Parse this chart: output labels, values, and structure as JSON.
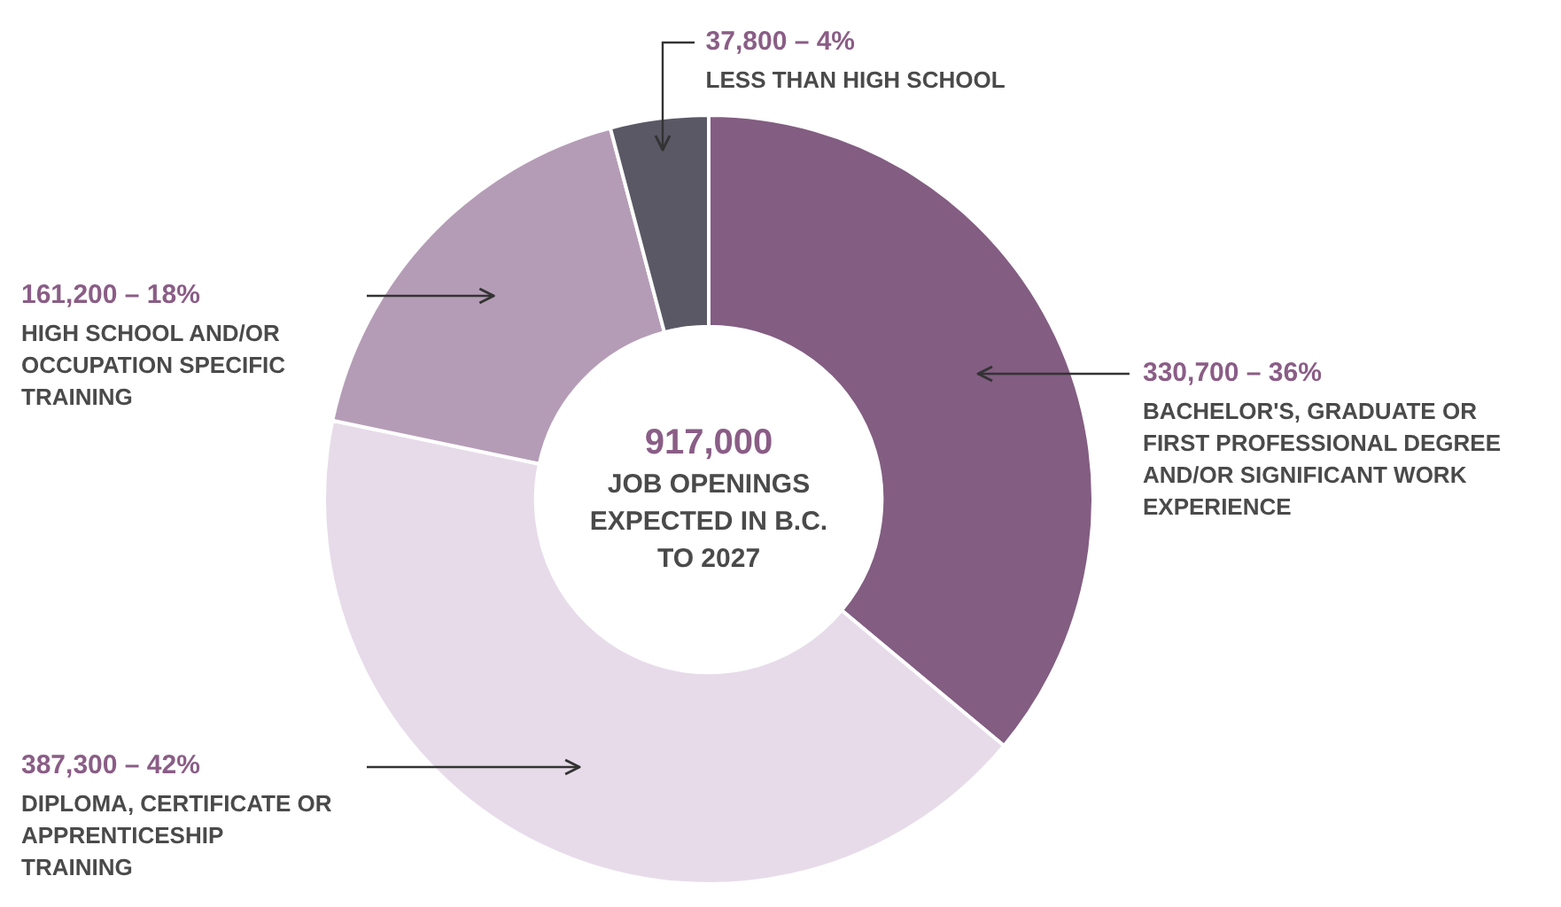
{
  "chart_data": {
    "type": "donut",
    "categories": [
      "BACHELOR'S, GRADUATE OR FIRST PROFESSIONAL DEGREE AND/OR SIGNIFICANT WORK EXPERIENCE",
      "DIPLOMA, CERTIFICATE OR APPRENTICESHIP TRAINING",
      "HIGH SCHOOL AND/OR OCCUPATION SPECIFIC TRAINING",
      "LESS THAN HIGH SCHOOL"
    ],
    "values": [
      330700,
      387300,
      161200,
      37800
    ],
    "value_labels": [
      "330,700 – 36%",
      "387,300 – 42%",
      "161,200 – 18%",
      "37,800 – 4%"
    ],
    "colors": [
      "#835d82",
      "#e7dbea",
      "#b59cb6",
      "#5b5866"
    ],
    "annotations": [
      "917,000",
      "JOB OPENINGS EXPECTED IN B.C. TO 2027"
    ]
  }
}
